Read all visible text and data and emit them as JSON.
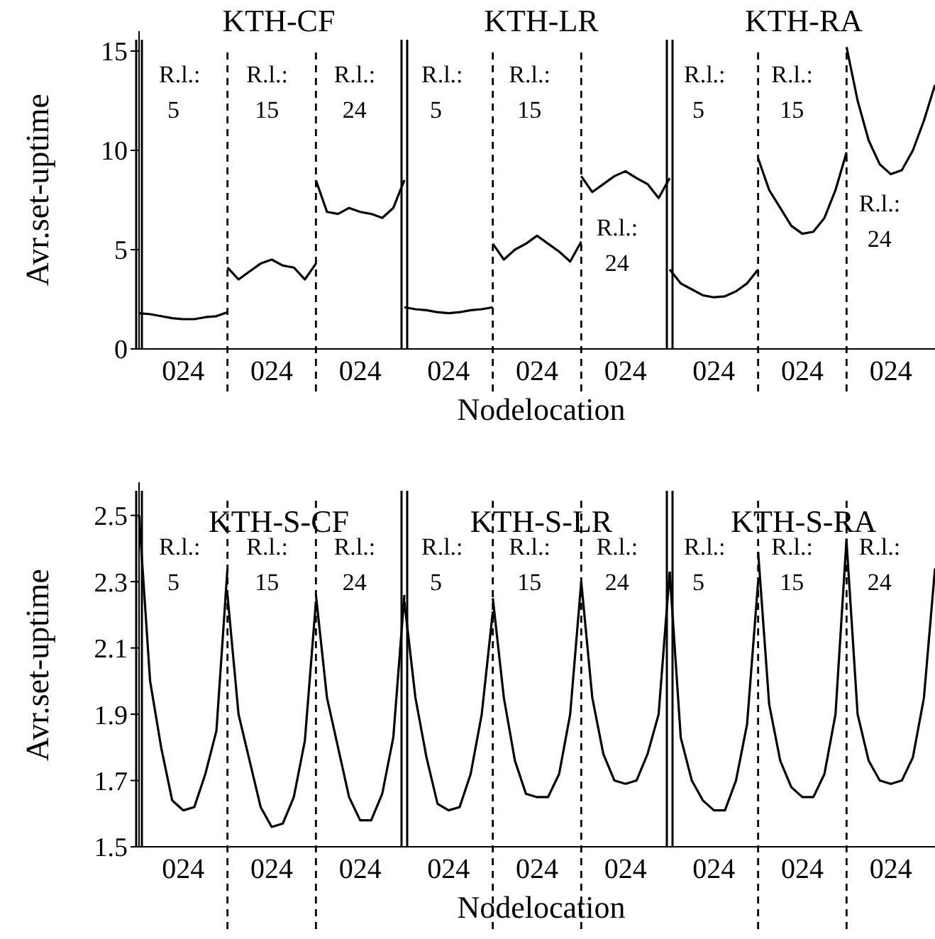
{
  "chart_data": [
    {
      "type": "line",
      "ylabel": "Avr.set-uptime",
      "xlabel": "Nodelocation",
      "ylim": [
        0,
        16
      ],
      "yticks": [
        0,
        5,
        10,
        15
      ],
      "marker": "none",
      "line_style": "solid",
      "categories": [
        null,
        null,
        null,
        null,
        "024",
        null,
        null,
        null,
        null,
        null,
        null,
        null,
        "024",
        null,
        null,
        null,
        null,
        null,
        null,
        null,
        "024",
        null,
        null,
        null,
        null,
        null,
        null,
        null,
        "024",
        null,
        null,
        null,
        null,
        null,
        null,
        null,
        "024",
        null,
        null,
        null,
        null,
        null,
        null,
        null,
        "024",
        null,
        null,
        null,
        null,
        null,
        null,
        null,
        "024",
        null,
        null,
        null,
        null,
        null,
        null,
        null,
        "024",
        null,
        null,
        null,
        null,
        null,
        null,
        null,
        "024",
        null,
        null,
        null,
        null
      ],
      "series": [
        {
          "color": "#000000",
          "values": [
            1.8,
            1.75,
            1.65,
            1.55,
            1.5,
            1.5,
            1.6,
            1.65,
            1.85,
            null,
            null,
            null,
            null,
            null,
            null,
            null,
            null,
            null,
            null,
            null,
            null,
            null,
            null,
            null,
            null,
            null,
            null,
            null,
            null,
            null,
            null,
            null,
            null,
            null,
            null,
            null,
            null,
            null,
            null,
            null,
            null,
            null,
            null,
            null,
            null,
            null,
            null,
            null,
            null,
            null,
            null,
            null,
            null,
            null,
            null,
            null,
            null,
            null,
            null,
            null,
            null,
            null,
            null,
            null,
            null,
            null,
            null,
            null,
            null,
            null,
            null,
            null,
            null
          ]
        },
        {
          "color": "#000000",
          "values": [
            null,
            null,
            null,
            null,
            null,
            null,
            null,
            null,
            4.1,
            3.5,
            3.9,
            4.3,
            4.5,
            4.2,
            4.1,
            3.5,
            4.3,
            null,
            null,
            null,
            null,
            null,
            null,
            null,
            null,
            null,
            null,
            null,
            null,
            null,
            null,
            null,
            null,
            null,
            null,
            null,
            null,
            null,
            null,
            null,
            null,
            null,
            null,
            null,
            null,
            null,
            null,
            null,
            null,
            null,
            null,
            null,
            null,
            null,
            null,
            null,
            null,
            null,
            null,
            null,
            null,
            null,
            null,
            null,
            null,
            null,
            null,
            null,
            null,
            null,
            null,
            null,
            null
          ]
        },
        {
          "color": "#000000",
          "values": [
            null,
            null,
            null,
            null,
            null,
            null,
            null,
            null,
            null,
            null,
            null,
            null,
            null,
            null,
            null,
            null,
            8.5,
            6.9,
            6.8,
            7.1,
            6.9,
            6.8,
            6.6,
            7.1,
            8.5,
            null,
            null,
            null,
            null,
            null,
            null,
            null,
            null,
            null,
            null,
            null,
            null,
            null,
            null,
            null,
            null,
            null,
            null,
            null,
            null,
            null,
            null,
            null,
            null,
            null,
            null,
            null,
            null,
            null,
            null,
            null,
            null,
            null,
            null,
            null,
            null,
            null,
            null,
            null,
            null,
            null,
            null,
            null,
            null,
            null,
            null,
            null,
            null
          ]
        },
        {
          "color": "#000000",
          "values": [
            null,
            null,
            null,
            null,
            null,
            null,
            null,
            null,
            null,
            null,
            null,
            null,
            null,
            null,
            null,
            null,
            null,
            null,
            null,
            null,
            null,
            null,
            null,
            null,
            2.1,
            2.0,
            1.95,
            1.85,
            1.8,
            1.85,
            1.95,
            2.0,
            2.1,
            null,
            null,
            null,
            null,
            null,
            null,
            null,
            null,
            null,
            null,
            null,
            null,
            null,
            null,
            null,
            null,
            null,
            null,
            null,
            null,
            null,
            null,
            null,
            null,
            null,
            null,
            null,
            null,
            null,
            null,
            null,
            null,
            null,
            null,
            null,
            null,
            null,
            null,
            null,
            null
          ]
        },
        {
          "color": "#000000",
          "values": [
            null,
            null,
            null,
            null,
            null,
            null,
            null,
            null,
            null,
            null,
            null,
            null,
            null,
            null,
            null,
            null,
            null,
            null,
            null,
            null,
            null,
            null,
            null,
            null,
            null,
            null,
            null,
            null,
            null,
            null,
            null,
            null,
            5.3,
            4.5,
            5.0,
            5.3,
            5.7,
            5.3,
            4.9,
            4.4,
            5.4,
            null,
            null,
            null,
            null,
            null,
            null,
            null,
            null,
            null,
            null,
            null,
            null,
            null,
            null,
            null,
            null,
            null,
            null,
            null,
            null,
            null,
            null,
            null,
            null,
            null,
            null,
            null,
            null,
            null,
            null,
            null,
            null
          ]
        },
        {
          "color": "#000000",
          "values": [
            null,
            null,
            null,
            null,
            null,
            null,
            null,
            null,
            null,
            null,
            null,
            null,
            null,
            null,
            null,
            null,
            null,
            null,
            null,
            null,
            null,
            null,
            null,
            null,
            null,
            null,
            null,
            null,
            null,
            null,
            null,
            null,
            null,
            null,
            null,
            null,
            null,
            null,
            null,
            null,
            8.7,
            7.9,
            8.3,
            8.7,
            8.95,
            8.6,
            8.3,
            7.6,
            8.6,
            null,
            null,
            null,
            null,
            null,
            null,
            null,
            null,
            null,
            null,
            null,
            null,
            null,
            null,
            null,
            null,
            null,
            null,
            null,
            null,
            null,
            null,
            null,
            null
          ]
        },
        {
          "color": "#000000",
          "values": [
            null,
            null,
            null,
            null,
            null,
            null,
            null,
            null,
            null,
            null,
            null,
            null,
            null,
            null,
            null,
            null,
            null,
            null,
            null,
            null,
            null,
            null,
            null,
            null,
            null,
            null,
            null,
            null,
            null,
            null,
            null,
            null,
            null,
            null,
            null,
            null,
            null,
            null,
            null,
            null,
            null,
            null,
            null,
            null,
            null,
            null,
            null,
            null,
            4.0,
            3.3,
            3.0,
            2.7,
            2.6,
            2.65,
            2.9,
            3.3,
            4.0,
            null,
            null,
            null,
            null,
            null,
            null,
            null,
            null,
            null,
            null,
            null,
            null,
            null,
            null,
            null,
            null
          ]
        },
        {
          "color": "#000000",
          "values": [
            null,
            null,
            null,
            null,
            null,
            null,
            null,
            null,
            null,
            null,
            null,
            null,
            null,
            null,
            null,
            null,
            null,
            null,
            null,
            null,
            null,
            null,
            null,
            null,
            null,
            null,
            null,
            null,
            null,
            null,
            null,
            null,
            null,
            null,
            null,
            null,
            null,
            null,
            null,
            null,
            null,
            null,
            null,
            null,
            null,
            null,
            null,
            null,
            null,
            null,
            null,
            null,
            null,
            null,
            null,
            null,
            9.6,
            8.0,
            7.1,
            6.2,
            5.8,
            5.9,
            6.6,
            8.0,
            9.9,
            null,
            null,
            null,
            null,
            null,
            null,
            null,
            null
          ]
        },
        {
          "color": "#000000",
          "values": [
            null,
            null,
            null,
            null,
            null,
            null,
            null,
            null,
            null,
            null,
            null,
            null,
            null,
            null,
            null,
            null,
            null,
            null,
            null,
            null,
            null,
            null,
            null,
            null,
            null,
            null,
            null,
            null,
            null,
            null,
            null,
            null,
            null,
            null,
            null,
            null,
            null,
            null,
            null,
            null,
            null,
            null,
            null,
            null,
            null,
            null,
            null,
            null,
            null,
            null,
            null,
            null,
            null,
            null,
            null,
            null,
            null,
            null,
            null,
            null,
            null,
            null,
            null,
            null,
            15.2,
            12.5,
            10.5,
            9.3,
            8.8,
            9.0,
            10.0,
            11.5,
            13.3
          ]
        }
      ],
      "annotations": [
        "KTH-CF",
        "KTH-LR",
        "KTH-RA",
        "R.l.: 5",
        "R.l.: 15",
        "R.l.: 24",
        "R.l.: 5",
        "R.l.: 15",
        "R.l.: 24",
        "R.l.: 5",
        "R.l.: 15",
        "R.l.: 24"
      ]
    },
    {
      "type": "line",
      "ylabel": "Avr.set-uptime",
      "xlabel": "Nodelocation",
      "ylim": [
        1.5,
        2.6
      ],
      "yticks": [
        1.5,
        1.7,
        1.9,
        2.1,
        2.3,
        2.5
      ],
      "marker": "none",
      "line_style": "solid",
      "categories": [
        null,
        null,
        null,
        null,
        "024",
        null,
        null,
        null,
        null,
        null,
        null,
        null,
        "024",
        null,
        null,
        null,
        null,
        null,
        null,
        null,
        "024",
        null,
        null,
        null,
        null,
        null,
        null,
        null,
        "024",
        null,
        null,
        null,
        null,
        null,
        null,
        null,
        "024",
        null,
        null,
        null,
        null,
        null,
        null,
        null,
        "024",
        null,
        null,
        null,
        null,
        null,
        null,
        null,
        "024",
        null,
        null,
        null,
        null,
        null,
        null,
        null,
        "024",
        null,
        null,
        null,
        null,
        null,
        null,
        null,
        "024",
        null,
        null,
        null,
        null
      ],
      "series": [
        {
          "color": "#000000",
          "values": [
            2.5,
            2.0,
            1.8,
            1.64,
            1.61,
            1.62,
            1.72,
            1.85,
            2.34,
            null,
            null,
            null,
            null,
            null,
            null,
            null,
            null,
            null,
            null,
            null,
            null,
            null,
            null,
            null,
            null,
            null,
            null,
            null,
            null,
            null,
            null,
            null,
            null,
            null,
            null,
            null,
            null,
            null,
            null,
            null,
            null,
            null,
            null,
            null,
            null,
            null,
            null,
            null,
            null,
            null,
            null,
            null,
            null,
            null,
            null,
            null,
            null,
            null,
            null,
            null,
            null,
            null,
            null,
            null,
            null,
            null,
            null,
            null,
            null,
            null,
            null,
            null,
            null
          ]
        },
        {
          "color": "#000000",
          "values": [
            null,
            null,
            null,
            null,
            null,
            null,
            null,
            null,
            2.26,
            1.9,
            1.76,
            1.62,
            1.56,
            1.57,
            1.65,
            1.82,
            2.24,
            null,
            null,
            null,
            null,
            null,
            null,
            null,
            null,
            null,
            null,
            null,
            null,
            null,
            null,
            null,
            null,
            null,
            null,
            null,
            null,
            null,
            null,
            null,
            null,
            null,
            null,
            null,
            null,
            null,
            null,
            null,
            null,
            null,
            null,
            null,
            null,
            null,
            null,
            null,
            null,
            null,
            null,
            null,
            null,
            null,
            null,
            null,
            null,
            null,
            null,
            null,
            null,
            null,
            null,
            null,
            null
          ]
        },
        {
          "color": "#000000",
          "values": [
            null,
            null,
            null,
            null,
            null,
            null,
            null,
            null,
            null,
            null,
            null,
            null,
            null,
            null,
            null,
            null,
            2.26,
            1.95,
            1.8,
            1.65,
            1.58,
            1.58,
            1.66,
            1.83,
            2.26,
            null,
            null,
            null,
            null,
            null,
            null,
            null,
            null,
            null,
            null,
            null,
            null,
            null,
            null,
            null,
            null,
            null,
            null,
            null,
            null,
            null,
            null,
            null,
            null,
            null,
            null,
            null,
            null,
            null,
            null,
            null,
            null,
            null,
            null,
            null,
            null,
            null,
            null,
            null,
            null,
            null,
            null,
            null,
            null,
            null,
            null,
            null,
            null
          ]
        },
        {
          "color": "#000000",
          "values": [
            null,
            null,
            null,
            null,
            null,
            null,
            null,
            null,
            null,
            null,
            null,
            null,
            null,
            null,
            null,
            null,
            null,
            null,
            null,
            null,
            null,
            null,
            null,
            null,
            2.24,
            1.95,
            1.77,
            1.63,
            1.61,
            1.62,
            1.72,
            1.9,
            2.21,
            null,
            null,
            null,
            null,
            null,
            null,
            null,
            null,
            null,
            null,
            null,
            null,
            null,
            null,
            null,
            null,
            null,
            null,
            null,
            null,
            null,
            null,
            null,
            null,
            null,
            null,
            null,
            null,
            null,
            null,
            null,
            null,
            null,
            null,
            null,
            null,
            null,
            null,
            null,
            null
          ]
        },
        {
          "color": "#000000",
          "values": [
            null,
            null,
            null,
            null,
            null,
            null,
            null,
            null,
            null,
            null,
            null,
            null,
            null,
            null,
            null,
            null,
            null,
            null,
            null,
            null,
            null,
            null,
            null,
            null,
            null,
            null,
            null,
            null,
            null,
            null,
            null,
            null,
            2.25,
            1.95,
            1.76,
            1.66,
            1.65,
            1.65,
            1.72,
            1.9,
            2.3,
            null,
            null,
            null,
            null,
            null,
            null,
            null,
            null,
            null,
            null,
            null,
            null,
            null,
            null,
            null,
            null,
            null,
            null,
            null,
            null,
            null,
            null,
            null,
            null,
            null,
            null,
            null,
            null,
            null,
            null,
            null,
            null
          ]
        },
        {
          "color": "#000000",
          "values": [
            null,
            null,
            null,
            null,
            null,
            null,
            null,
            null,
            null,
            null,
            null,
            null,
            null,
            null,
            null,
            null,
            null,
            null,
            null,
            null,
            null,
            null,
            null,
            null,
            null,
            null,
            null,
            null,
            null,
            null,
            null,
            null,
            null,
            null,
            null,
            null,
            null,
            null,
            null,
            null,
            2.3,
            1.95,
            1.78,
            1.7,
            1.69,
            1.7,
            1.78,
            1.9,
            2.33,
            null,
            null,
            null,
            null,
            null,
            null,
            null,
            null,
            null,
            null,
            null,
            null,
            null,
            null,
            null,
            null,
            null,
            null,
            null,
            null,
            null,
            null,
            null,
            null
          ]
        },
        {
          "color": "#000000",
          "values": [
            null,
            null,
            null,
            null,
            null,
            null,
            null,
            null,
            null,
            null,
            null,
            null,
            null,
            null,
            null,
            null,
            null,
            null,
            null,
            null,
            null,
            null,
            null,
            null,
            null,
            null,
            null,
            null,
            null,
            null,
            null,
            null,
            null,
            null,
            null,
            null,
            null,
            null,
            null,
            null,
            null,
            null,
            null,
            null,
            null,
            null,
            null,
            null,
            2.33,
            1.83,
            1.7,
            1.64,
            1.61,
            1.61,
            1.7,
            1.87,
            2.3,
            null,
            null,
            null,
            null,
            null,
            null,
            null,
            null,
            null,
            null,
            null,
            null,
            null,
            null,
            null,
            null
          ]
        },
        {
          "color": "#000000",
          "values": [
            null,
            null,
            null,
            null,
            null,
            null,
            null,
            null,
            null,
            null,
            null,
            null,
            null,
            null,
            null,
            null,
            null,
            null,
            null,
            null,
            null,
            null,
            null,
            null,
            null,
            null,
            null,
            null,
            null,
            null,
            null,
            null,
            null,
            null,
            null,
            null,
            null,
            null,
            null,
            null,
            null,
            null,
            null,
            null,
            null,
            null,
            null,
            null,
            null,
            null,
            null,
            null,
            null,
            null,
            null,
            null,
            2.39,
            1.93,
            1.76,
            1.68,
            1.65,
            1.65,
            1.72,
            1.9,
            2.43,
            null,
            null,
            null,
            null,
            null,
            null,
            null,
            null
          ]
        },
        {
          "color": "#000000",
          "values": [
            null,
            null,
            null,
            null,
            null,
            null,
            null,
            null,
            null,
            null,
            null,
            null,
            null,
            null,
            null,
            null,
            null,
            null,
            null,
            null,
            null,
            null,
            null,
            null,
            null,
            null,
            null,
            null,
            null,
            null,
            null,
            null,
            null,
            null,
            null,
            null,
            null,
            null,
            null,
            null,
            null,
            null,
            null,
            null,
            null,
            null,
            null,
            null,
            null,
            null,
            null,
            null,
            null,
            null,
            null,
            null,
            null,
            null,
            null,
            null,
            null,
            null,
            null,
            null,
            2.42,
            1.9,
            1.76,
            1.7,
            1.69,
            1.7,
            1.77,
            1.95,
            2.34
          ]
        }
      ],
      "annotations": [
        "KTH-S-CF",
        "KTH-S-LR",
        "KTH-S-RA",
        "R.l.: 5",
        "R.l.: 15",
        "R.l.: 24",
        "R.l.: 5",
        "R.l.: 15",
        "R.l.: 24",
        "R.l.: 5",
        "R.l.: 15",
        "R.l.: 24"
      ]
    }
  ]
}
